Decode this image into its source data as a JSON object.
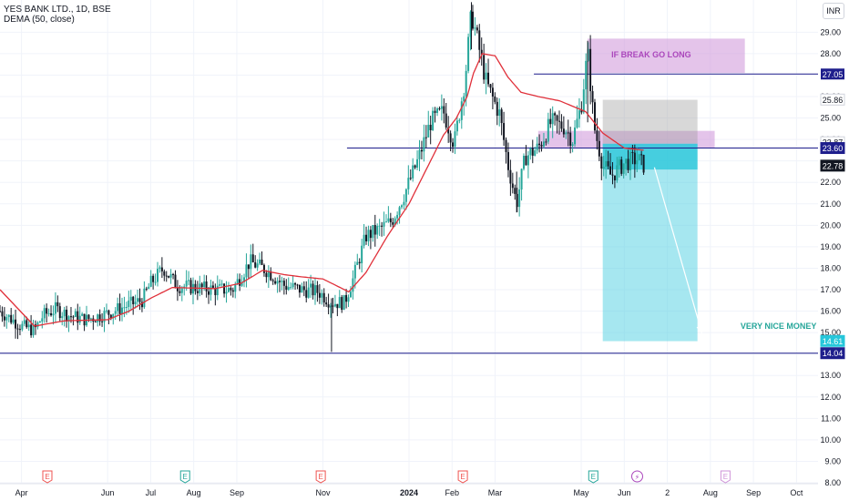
{
  "header": {
    "symbol_line": "YES BANK LTD., 1D, BSE",
    "indicator_line": "DEMA (50, close)"
  },
  "currency": "INR",
  "colors": {
    "up": "#26a69a",
    "down": "#131722",
    "dema": "#e0303a",
    "level_line": "#1e1e8c",
    "level_tag_dark": "#1e1e8c",
    "purple_zone": "#ce93d8",
    "grey_zone": "#9e9e9e",
    "target_zone": "#4dd0e1",
    "annotation_green": "#26a69a",
    "annotation_purple": "#ab47bc"
  },
  "chart_data": {
    "type": "candlestick",
    "title": "YES BANK LTD., 1D, BSE",
    "indicator": "DEMA (50, close)",
    "ylim": [
      8.0,
      30.5
    ],
    "y_ticks": [
      8.0,
      9.0,
      10.0,
      11.0,
      12.0,
      13.0,
      14.0,
      15.0,
      16.0,
      17.0,
      18.0,
      19.0,
      20.0,
      21.0,
      22.0,
      23.0,
      24.0,
      25.0,
      26.0,
      27.0,
      28.0,
      29.0
    ],
    "hidden_ticks": [
      14.0,
      23.0
    ],
    "x_ticks": [
      {
        "label": "Apr",
        "pos": 0.5
      },
      {
        "label": "Jun",
        "pos": 2.5
      },
      {
        "label": "Jul",
        "pos": 3.5
      },
      {
        "label": "Aug",
        "pos": 4.5
      },
      {
        "label": "Sep",
        "pos": 5.5
      },
      {
        "label": "Nov",
        "pos": 7.5
      },
      {
        "label": "2024",
        "pos": 9.5,
        "bold": true
      },
      {
        "label": "Feb",
        "pos": 10.5
      },
      {
        "label": "Mar",
        "pos": 11.5
      },
      {
        "label": "May",
        "pos": 13.5
      },
      {
        "label": "Jun",
        "pos": 14.5
      },
      {
        "label": "2",
        "pos": 15.5
      },
      {
        "label": "Aug",
        "pos": 16.5
      },
      {
        "label": "Sep",
        "pos": 17.5
      },
      {
        "label": "Oct",
        "pos": 18.5
      }
    ],
    "x_domain": [
      0,
      19.0
    ],
    "anchors": [
      [
        0,
        16.0
      ],
      [
        0.5,
        15.3
      ],
      [
        0.8,
        15.1
      ],
      [
        1.0,
        15.8
      ],
      [
        1.3,
        16.1
      ],
      [
        1.6,
        15.8
      ],
      [
        2.0,
        15.6
      ],
      [
        2.5,
        15.9
      ],
      [
        3.0,
        16.3
      ],
      [
        3.3,
        16.5
      ],
      [
        3.5,
        17.3
      ],
      [
        3.8,
        18.0
      ],
      [
        4.1,
        17.2
      ],
      [
        4.5,
        17.1
      ],
      [
        5.0,
        17.0
      ],
      [
        5.4,
        17.0
      ],
      [
        5.8,
        18.3
      ],
      [
        6.2,
        17.9
      ],
      [
        6.6,
        17.2
      ],
      [
        7.0,
        17.0
      ],
      [
        7.4,
        16.9
      ],
      [
        7.7,
        16.4
      ],
      [
        8.0,
        16.4
      ],
      [
        8.2,
        17.5
      ],
      [
        8.5,
        19.5
      ],
      [
        8.8,
        19.8
      ],
      [
        9.1,
        20.2
      ],
      [
        9.4,
        21.5
      ],
      [
        9.7,
        23.0
      ],
      [
        10.0,
        24.8
      ],
      [
        10.3,
        25.3
      ],
      [
        10.55,
        23.8
      ],
      [
        10.8,
        26.8
      ],
      [
        10.95,
        29.9
      ],
      [
        11.1,
        28.5
      ],
      [
        11.3,
        26.6
      ],
      [
        11.6,
        25.2
      ],
      [
        11.8,
        22.8
      ],
      [
        12.0,
        21.0
      ],
      [
        12.2,
        23.2
      ],
      [
        12.5,
        23.6
      ],
      [
        12.8,
        24.8
      ],
      [
        13.1,
        24.6
      ],
      [
        13.3,
        24.0
      ],
      [
        13.5,
        25.6
      ],
      [
        13.65,
        28.1
      ],
      [
        13.8,
        24.6
      ],
      [
        14.0,
        22.8
      ],
      [
        14.2,
        22.3
      ],
      [
        14.5,
        22.9
      ],
      [
        14.8,
        23.1
      ],
      [
        14.95,
        22.8
      ]
    ],
    "dema_anchors": [
      [
        0,
        17.0
      ],
      [
        0.8,
        15.3
      ],
      [
        1.5,
        15.55
      ],
      [
        2.5,
        15.6
      ],
      [
        3.0,
        16.0
      ],
      [
        3.5,
        16.6
      ],
      [
        4.0,
        17.1
      ],
      [
        5.0,
        17.05
      ],
      [
        5.6,
        17.3
      ],
      [
        6.1,
        17.9
      ],
      [
        6.6,
        17.7
      ],
      [
        7.0,
        17.6
      ],
      [
        7.5,
        17.5
      ],
      [
        8.1,
        16.9
      ],
      [
        8.5,
        17.8
      ],
      [
        9.0,
        19.5
      ],
      [
        9.5,
        21.0
      ],
      [
        10.0,
        23.0
      ],
      [
        10.3,
        24.2
      ],
      [
        10.6,
        25.0
      ],
      [
        10.85,
        26.0
      ],
      [
        11.0,
        27.1
      ],
      [
        11.2,
        28.0
      ],
      [
        11.5,
        27.9
      ],
      [
        11.8,
        26.9
      ],
      [
        12.1,
        26.2
      ],
      [
        12.5,
        26.0
      ],
      [
        13.0,
        25.8
      ],
      [
        13.6,
        25.3
      ],
      [
        14.0,
        24.3
      ],
      [
        14.5,
        23.6
      ],
      [
        14.95,
        23.5
      ]
    ],
    "levels": [
      {
        "price": 27.05,
        "from": 12.4,
        "label": "27.05"
      },
      {
        "price": 23.6,
        "from": 8.06,
        "label": "23.60"
      },
      {
        "price": 14.04,
        "from": 0,
        "label": "14.04"
      }
    ],
    "price_tags": [
      {
        "price": 25.86,
        "label": "25.86",
        "style": "light"
      },
      {
        "price": 23.87,
        "label": "23.87",
        "style": "light"
      },
      {
        "price": 23.6,
        "label": "23.60",
        "style": "dark"
      },
      {
        "price": 22.78,
        "label": "22.78",
        "style": "black"
      },
      {
        "price": 14.04,
        "label": "14.04",
        "style": "dark"
      },
      {
        "price": 14.61,
        "label": "14.61",
        "style": "teal"
      }
    ],
    "zones": [
      {
        "type": "purple",
        "x0": 13.65,
        "x1": 17.3,
        "y0": 27.1,
        "y1": 28.7
      },
      {
        "type": "purple",
        "x0": 12.5,
        "x1": 16.6,
        "y0": 23.6,
        "y1": 24.4
      },
      {
        "type": "grey",
        "x0": 14.0,
        "x1": 16.2,
        "y0": 23.8,
        "y1": 25.85
      },
      {
        "type": "teal_light",
        "x0": 14.0,
        "x1": 16.2,
        "y0": 14.6,
        "y1": 23.8
      },
      {
        "type": "teal_dark",
        "x0": 14.0,
        "x1": 16.2,
        "y0": 22.6,
        "y1": 23.8
      }
    ],
    "arrow": {
      "x0": 15.2,
      "y0": 22.7,
      "x1": 16.3,
      "y1": 15.0
    },
    "annotations": [
      {
        "text": "IF BREAK GO LONG",
        "x": 14.2,
        "y": 27.95,
        "color": "purple"
      },
      {
        "text": "VERY NICE MONEY HERE",
        "x": 17.2,
        "y": 15.3,
        "color": "green"
      }
    ],
    "event_markers": [
      {
        "pos": 1.1,
        "letter": "E",
        "type": "earnings"
      },
      {
        "pos": 4.3,
        "letter": "E",
        "type": "earnings_green"
      },
      {
        "pos": 7.45,
        "letter": "E",
        "type": "earnings"
      },
      {
        "pos": 10.75,
        "letter": "E",
        "type": "earnings"
      },
      {
        "pos": 13.78,
        "letter": "E",
        "type": "earnings_green"
      },
      {
        "pos": 14.8,
        "letter": "⚡",
        "type": "split"
      },
      {
        "pos": 16.85,
        "letter": "E",
        "type": "earnings_future"
      }
    ],
    "grid": true,
    "legend": "top-left"
  }
}
